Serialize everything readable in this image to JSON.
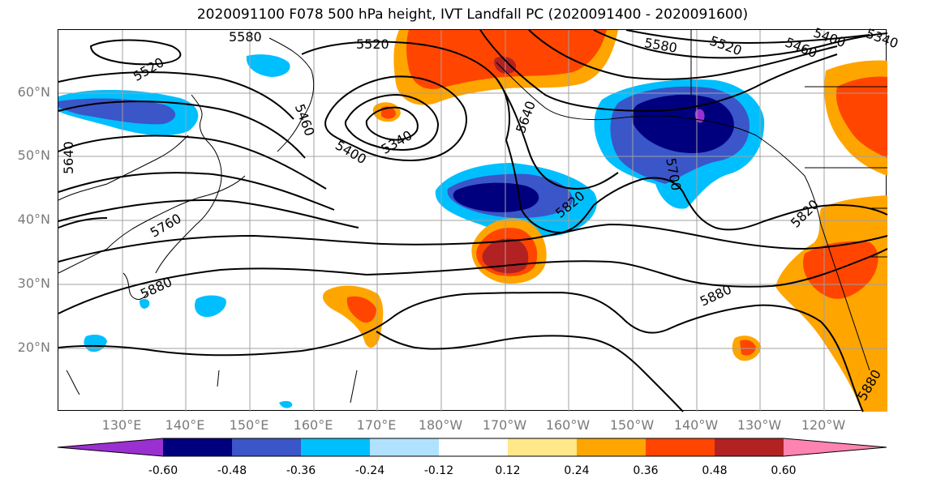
{
  "title": "2020091100 F078 500 hPa height, IVT Landfall PC (2020091400 - 2020091600)",
  "lat_labels": [
    "60°N",
    "50°N",
    "40°N",
    "30°N",
    "20°N"
  ],
  "lon_labels": [
    "130°E",
    "140°E",
    "150°E",
    "160°E",
    "170°E",
    "180°W",
    "170°W",
    "160°W",
    "150°W",
    "140°W",
    "130°W",
    "120°W"
  ],
  "contour_labels": [
    "5580",
    "5520",
    "5520",
    "5580",
    "5520",
    "5460",
    "5400",
    "5340",
    "5460",
    "5400",
    "5340",
    "5640",
    "5640",
    "5700",
    "5820",
    "5760",
    "5820",
    "5880",
    "5880",
    "5880"
  ],
  "colorbar": {
    "colors": [
      "#9b30d0",
      "#00007f",
      "#3a56c8",
      "#00bfff",
      "#b0e2ff",
      "#ffffff",
      "#ffe78a",
      "#ffa500",
      "#ff4500",
      "#b22222",
      "#ff83b0"
    ],
    "tick_labels": [
      "-0.60",
      "-0.48",
      "-0.36",
      "-0.24",
      "-0.12",
      "0.12",
      "0.24",
      "0.36",
      "0.48",
      "0.60"
    ]
  }
}
